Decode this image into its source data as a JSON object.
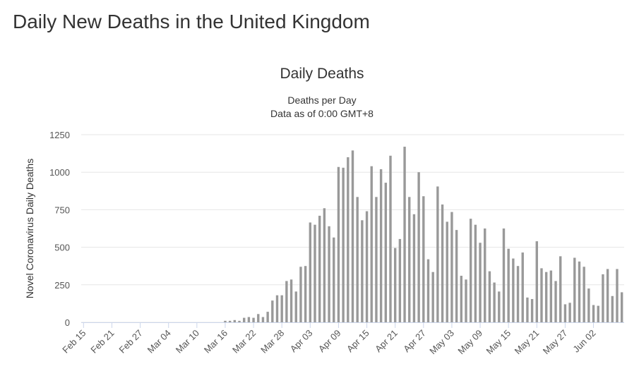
{
  "page_title": "Daily New Deaths in the United Kingdom",
  "chart_data": {
    "type": "bar",
    "title": "Daily Deaths",
    "subtitle": "Deaths per Day",
    "note": "Data as of 0:00 GMT+8",
    "y_label": "Novel Coronavirus Daily Deaths",
    "color": "#999999",
    "grid": true,
    "ylim": [
      0,
      1250
    ],
    "yticks": [
      0,
      250,
      500,
      750,
      1000,
      1250
    ],
    "categories": [
      "Feb 15",
      null,
      null,
      null,
      null,
      null,
      "Feb 21",
      null,
      null,
      null,
      null,
      null,
      "Feb 27",
      null,
      null,
      null,
      null,
      null,
      "Mar 04",
      null,
      null,
      null,
      null,
      null,
      "Mar 10",
      null,
      null,
      null,
      null,
      null,
      "Mar 16",
      null,
      null,
      null,
      null,
      null,
      "Mar 22",
      null,
      null,
      null,
      null,
      null,
      "Mar 28",
      null,
      null,
      null,
      null,
      null,
      "Apr 03",
      null,
      null,
      null,
      null,
      null,
      "Apr 09",
      null,
      null,
      null,
      null,
      null,
      "Apr 15",
      null,
      null,
      null,
      null,
      null,
      "Apr 21",
      null,
      null,
      null,
      null,
      null,
      "Apr 27",
      null,
      null,
      null,
      null,
      null,
      "May 03",
      null,
      null,
      null,
      null,
      null,
      "May 09",
      null,
      null,
      null,
      null,
      null,
      "May 15",
      null,
      null,
      null,
      null,
      null,
      "May 21",
      null,
      null,
      null,
      null,
      null,
      "May 27",
      null,
      null,
      null,
      null,
      null,
      "Jun 02",
      null,
      null,
      null,
      null,
      null,
      null
    ],
    "values": [
      0,
      0,
      0,
      0,
      0,
      0,
      0,
      0,
      0,
      0,
      0,
      0,
      0,
      0,
      0,
      0,
      0,
      0,
      0,
      0,
      0,
      0,
      0,
      0,
      0,
      0,
      0,
      0,
      0,
      0,
      10,
      10,
      15,
      10,
      30,
      35,
      30,
      55,
      35,
      70,
      145,
      180,
      180,
      275,
      285,
      205,
      370,
      375,
      665,
      650,
      710,
      760,
      640,
      565,
      1035,
      1030,
      1100,
      1145,
      835,
      680,
      740,
      1040,
      835,
      1020,
      930,
      1110,
      495,
      555,
      1170,
      835,
      720,
      1000,
      840,
      420,
      335,
      905,
      785,
      670,
      735,
      615,
      310,
      285,
      690,
      650,
      530,
      625,
      340,
      265,
      205,
      625,
      490,
      425,
      375,
      465,
      165,
      155,
      540,
      360,
      335,
      345,
      275,
      440,
      120,
      130,
      430,
      405,
      370,
      225,
      115,
      110,
      320,
      355,
      175,
      355,
      200
    ]
  }
}
